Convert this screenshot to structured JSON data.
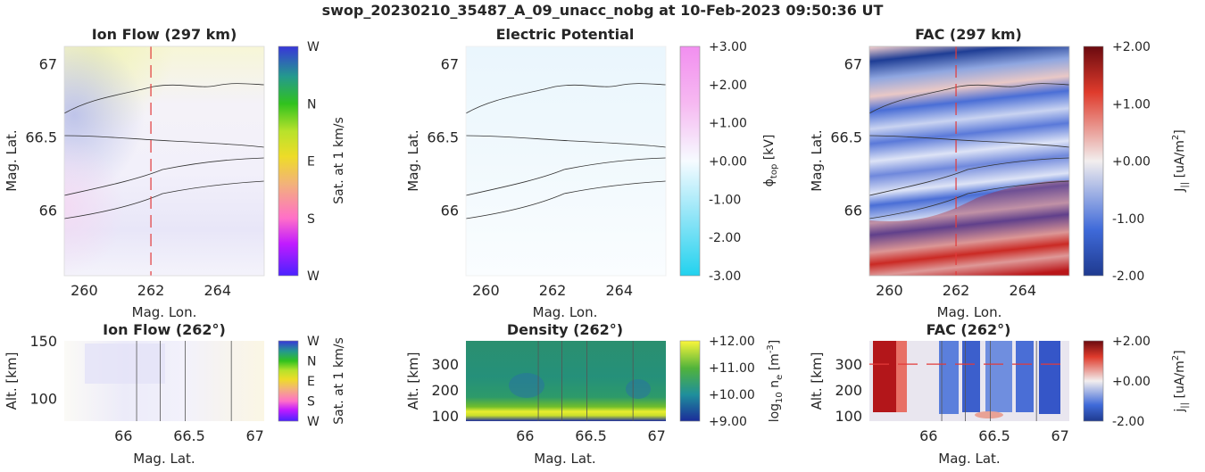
{
  "figure": {
    "title": "swop_20230210_35487_A_09_unacc_nobg at 10-Feb-2023 09:50:36 UT"
  },
  "chart_data": [
    {
      "id": "ion-flow-297",
      "type": "heatmap",
      "title": "Ion Flow (297 km)",
      "xlabel": "Mag. Lon.",
      "ylabel": "Mag. Lat.",
      "xlim": [
        259.4,
        265.4
      ],
      "ylim": [
        65.55,
        67.12
      ],
      "xticks": [
        "260",
        "262",
        "264"
      ],
      "xtick_values": [
        260,
        262,
        264
      ],
      "yticks": [
        "67",
        "66.5",
        "66"
      ],
      "ytick_values": [
        67,
        66.5,
        66
      ],
      "colorbar": {
        "label": "Sat. at 1 km/s",
        "ticks": [
          "W",
          "N",
          "E",
          "S",
          "W"
        ]
      },
      "cut_lon": 262
    },
    {
      "id": "electric-potential",
      "type": "heatmap",
      "title": "Electric Potential",
      "xlabel": "Mag. Lon.",
      "ylabel": "Mag. Lat.",
      "xlim": [
        259.4,
        265.4
      ],
      "ylim": [
        65.55,
        67.12
      ],
      "xticks": [
        "260",
        "262",
        "264"
      ],
      "xtick_values": [
        260,
        262,
        264
      ],
      "yticks": [
        "67",
        "66.5",
        "66"
      ],
      "ytick_values": [
        67,
        66.5,
        66
      ],
      "colorbar": {
        "label": "ϕtop [kV]",
        "ticks": [
          "+3.00",
          "+2.00",
          "+1.00",
          "+0.00",
          "-1.00",
          "-2.00",
          "-3.00"
        ],
        "range": [
          -3,
          3
        ]
      }
    },
    {
      "id": "fac-297",
      "type": "heatmap",
      "title": "FAC (297 km)",
      "xlabel": "Mag. Lon.",
      "ylabel": "Mag. Lat.",
      "xlim": [
        259.4,
        265.4
      ],
      "ylim": [
        65.55,
        67.12
      ],
      "xticks": [
        "260",
        "262",
        "264"
      ],
      "xtick_values": [
        260,
        262,
        264
      ],
      "yticks": [
        "67",
        "66.5",
        "66"
      ],
      "ytick_values": [
        67,
        66.5,
        66
      ],
      "colorbar": {
        "label": "J|| [uA/m2]",
        "ticks": [
          "+2.00",
          "+1.00",
          "+0.00",
          "-1.00",
          "-2.00"
        ],
        "range": [
          -2,
          2
        ]
      },
      "cut_lon": 262
    },
    {
      "id": "ion-flow-262",
      "type": "heatmap",
      "title": "Ion Flow (262°)",
      "xlabel": "Mag. Lat.",
      "ylabel": "Alt. [km]",
      "xlim": [
        65.55,
        67.07
      ],
      "ylim": [
        80,
        150
      ],
      "xticks": [
        "66",
        "66.5",
        "67"
      ],
      "xtick_values": [
        66,
        66.5,
        67
      ],
      "yticks": [
        "150",
        "100"
      ],
      "ytick_values": [
        150,
        100
      ],
      "colorbar": {
        "label": "Sat. at 1 km/s",
        "ticks": [
          "W",
          "N",
          "E",
          "S",
          "W"
        ]
      },
      "boundary_lats": [
        66.1,
        66.28,
        66.47,
        66.82
      ]
    },
    {
      "id": "density-262",
      "type": "heatmap",
      "title": "Density (262°)",
      "xlabel": "Mag. Lat.",
      "ylabel": "Alt. [km]",
      "xlim": [
        65.55,
        67.07
      ],
      "ylim": [
        80,
        390
      ],
      "xticks": [
        "66",
        "66.5",
        "67"
      ],
      "xtick_values": [
        66,
        66.5,
        67
      ],
      "yticks": [
        "300",
        "200",
        "100"
      ],
      "ytick_values": [
        300,
        200,
        100
      ],
      "colorbar": {
        "label": "log10 ne [m-3]",
        "ticks": [
          "+12.00",
          "+11.00",
          "+10.00",
          "+9.00"
        ],
        "range": [
          9,
          12
        ]
      },
      "boundary_lats": [
        66.1,
        66.28,
        66.47,
        66.82
      ]
    },
    {
      "id": "fac-262",
      "type": "heatmap",
      "title": "FAC (262°)",
      "xlabel": "Mag. Lat.",
      "ylabel": "Alt. [km]",
      "xlim": [
        65.55,
        67.07
      ],
      "ylim": [
        80,
        390
      ],
      "xticks": [
        "66",
        "66.5",
        "67"
      ],
      "xtick_values": [
        66,
        66.5,
        67
      ],
      "yticks": [
        "300",
        "200",
        "100"
      ],
      "ytick_values": [
        300,
        200,
        100
      ],
      "colorbar": {
        "label": "j|| [uA/m2]",
        "ticks": [
          "+2.00",
          "+0.00",
          "-2.00"
        ],
        "range": [
          -2,
          2
        ]
      },
      "cut_alt": 300,
      "boundary_lats": [
        66.1,
        66.28,
        66.47,
        66.82
      ]
    }
  ]
}
